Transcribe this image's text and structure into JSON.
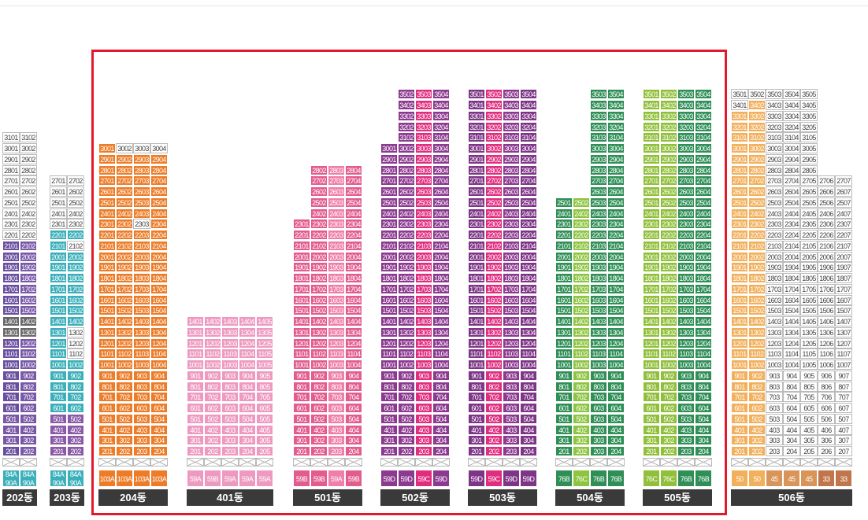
{
  "colors": {
    "202": "#4a4a4a",
    "203": "#3bb0bb",
    "204": "#ec7c28",
    "401": "#ee9ac0",
    "501": "#e35c8e",
    "502": "#8c3a90",
    "503": "#7e3587",
    "504": "#2f8f57",
    "505": "#90bf3a",
    "506": "#a5a5a5"
  },
  "buildings": [
    {
      "id": "202",
      "label": "202동",
      "floors": [
        31,
        26
      ],
      "units": [
        "01",
        "02"
      ],
      "types": [
        "84A|90A",
        "84A|90A"
      ]
    },
    {
      "id": "203",
      "label": "203동",
      "floors": [
        27,
        26
      ],
      "units": [
        "01",
        "02"
      ],
      "types": [
        "84A|90A",
        "84A|90A"
      ]
    },
    {
      "id": "204",
      "label": "204동",
      "floors": [
        30,
        2
      ],
      "units": [
        "01",
        "02",
        "03",
        "04"
      ],
      "types": [
        "103A",
        "103A",
        "103A",
        "103A"
      ]
    },
    {
      "id": "401",
      "label": "401동",
      "floors": [
        14,
        2
      ],
      "units": [
        "01",
        "02",
        "03",
        "04",
        "05"
      ],
      "types": [
        "59A",
        "59B",
        "59A",
        "59A",
        "59A"
      ]
    },
    {
      "id": "501",
      "label": "501동",
      "floors": [
        28,
        2
      ],
      "units": [
        "01",
        "02",
        "03",
        "04"
      ],
      "types": [
        "59B",
        "59B",
        "59A",
        "59B"
      ]
    },
    {
      "id": "502",
      "label": "502동",
      "floors": [
        35,
        2
      ],
      "units": [
        "01",
        "02",
        "03",
        "04"
      ],
      "types": [
        "59D",
        "59D",
        "59C",
        "59D"
      ]
    },
    {
      "id": "503",
      "label": "503동",
      "floors": [
        35,
        2
      ],
      "units": [
        "01",
        "02",
        "03",
        "04"
      ],
      "types": [
        "59D",
        "59C",
        "59D",
        "59D"
      ]
    },
    {
      "id": "504",
      "label": "504동",
      "floors": [
        35,
        2
      ],
      "units": [
        "01",
        "02",
        "03",
        "04"
      ],
      "types": [
        "76B",
        "76C",
        "76B",
        "76B"
      ]
    },
    {
      "id": "505",
      "label": "505동",
      "floors": [
        35,
        2
      ],
      "units": [
        "01",
        "02",
        "03",
        "04"
      ],
      "types": [
        "76C",
        "76C",
        "76B",
        "76B"
      ]
    },
    {
      "id": "506",
      "label": "506동",
      "floors": [
        35,
        2
      ],
      "units": [
        "01",
        "02",
        "03",
        "04",
        "05",
        "06",
        "07"
      ],
      "types": [
        "50",
        "50",
        "45",
        "45",
        "45",
        "33",
        "33"
      ]
    }
  ]
}
